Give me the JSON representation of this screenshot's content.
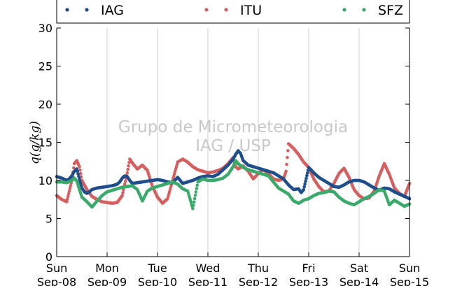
{
  "chart_data": {
    "type": "scatter",
    "title": "",
    "xlabel": "",
    "ylabel": "q(g/kg)",
    "ylim": [
      0,
      30
    ],
    "yticks": [
      0,
      5,
      10,
      15,
      20,
      25,
      30
    ],
    "xlim": [
      0,
      7
    ],
    "xticks": [
      {
        "x": 0,
        "day": "Sun",
        "date": "Sep-08"
      },
      {
        "x": 1,
        "day": "Mon",
        "date": "Sep-09"
      },
      {
        "x": 2,
        "day": "Tue",
        "date": "Sep-10"
      },
      {
        "x": 3,
        "day": "Wed",
        "date": "Sep-11"
      },
      {
        "x": 4,
        "day": "Thu",
        "date": "Sep-12"
      },
      {
        "x": 5,
        "day": "Fri",
        "date": "Sep-13"
      },
      {
        "x": 6,
        "day": "Sat",
        "date": "Sep-14"
      },
      {
        "x": 7,
        "day": "Sun",
        "date": "Sep-15"
      }
    ],
    "grid": "vertical",
    "legend_position": "top",
    "watermark": [
      "Grupo de Micrometeorologia",
      "IAG / USP"
    ],
    "series": [
      {
        "name": "IAG",
        "color": "#1f4e8c",
        "x": [
          0.0,
          0.1,
          0.2,
          0.25,
          0.3,
          0.35,
          0.4,
          0.45,
          0.5,
          0.55,
          0.6,
          0.65,
          0.7,
          0.8,
          0.9,
          1.0,
          1.1,
          1.2,
          1.25,
          1.3,
          1.35,
          1.4,
          1.45,
          1.5,
          1.6,
          1.7,
          1.8,
          1.9,
          2.0,
          2.1,
          2.2,
          2.3,
          2.4,
          2.5,
          2.6,
          2.7,
          2.8,
          2.9,
          3.0,
          3.1,
          3.2,
          3.3,
          3.4,
          3.5,
          3.55,
          3.6,
          3.65,
          3.7,
          3.8,
          3.9,
          4.0,
          4.1,
          4.2,
          4.3,
          4.4,
          4.5,
          4.6,
          4.7,
          4.8,
          4.85,
          4.9,
          5.0,
          5.1,
          5.2,
          5.3,
          5.4,
          5.5,
          5.6,
          5.7,
          5.8,
          5.9,
          6.0,
          6.1,
          6.2,
          6.3,
          6.4,
          6.5,
          6.6,
          6.7,
          6.8,
          6.9,
          7.0
        ],
        "y": [
          10.5,
          10.3,
          10.0,
          10.2,
          10.6,
          11.2,
          11.5,
          10.2,
          9.0,
          8.5,
          8.3,
          8.5,
          8.8,
          9.0,
          9.1,
          9.2,
          9.3,
          9.5,
          9.8,
          10.3,
          10.6,
          10.5,
          10.0,
          9.6,
          9.7,
          9.8,
          9.9,
          10.0,
          10.1,
          10.0,
          9.8,
          9.7,
          10.4,
          9.6,
          9.8,
          10.0,
          10.3,
          10.5,
          10.6,
          10.5,
          10.8,
          11.4,
          12.0,
          12.8,
          13.4,
          13.9,
          13.5,
          12.6,
          12.0,
          11.8,
          11.6,
          11.4,
          11.2,
          11.0,
          10.6,
          10.2,
          9.4,
          8.8,
          8.9,
          8.4,
          8.8,
          11.7,
          11.0,
          10.4,
          10.0,
          9.6,
          9.2,
          9.1,
          9.4,
          9.8,
          10.0,
          10.0,
          9.8,
          9.4,
          9.0,
          8.7,
          9.0,
          8.9,
          8.5,
          8.2,
          7.9,
          7.6
        ]
      },
      {
        "name": "ITU",
        "color": "#d45f5f",
        "x": [
          0.0,
          0.1,
          0.2,
          0.3,
          0.35,
          0.4,
          0.45,
          0.5,
          0.6,
          0.7,
          0.8,
          0.9,
          1.0,
          1.1,
          1.2,
          1.3,
          1.35,
          1.4,
          1.45,
          1.5,
          1.55,
          1.6,
          1.7,
          1.8,
          1.9,
          2.0,
          2.1,
          2.2,
          2.3,
          2.4,
          2.5,
          2.6,
          2.7,
          2.8,
          2.9,
          3.0,
          3.1,
          3.2,
          3.3,
          3.4,
          3.5,
          3.55,
          3.6,
          3.7,
          3.8,
          3.9,
          4.0,
          4.1,
          4.2,
          4.3,
          4.4,
          4.5,
          4.55,
          4.6,
          4.7,
          4.8,
          4.9,
          5.0,
          5.1,
          5.2,
          5.3,
          5.4,
          5.5,
          5.6,
          5.7,
          5.8,
          5.9,
          6.0,
          6.1,
          6.2,
          6.3,
          6.4,
          6.5,
          6.6,
          6.7,
          6.8,
          6.9,
          7.0
        ],
        "y": [
          8.0,
          7.5,
          7.2,
          10.0,
          12.2,
          12.6,
          11.8,
          10.0,
          8.8,
          7.9,
          7.5,
          7.2,
          7.1,
          7.0,
          7.1,
          8.0,
          9.5,
          11.0,
          12.8,
          12.3,
          11.9,
          11.5,
          12.0,
          11.3,
          9.2,
          7.8,
          7.0,
          7.6,
          10.0,
          12.4,
          12.8,
          12.4,
          11.8,
          11.4,
          11.2,
          11.0,
          11.1,
          11.3,
          11.6,
          12.2,
          13.0,
          11.8,
          11.5,
          11.9,
          11.2,
          10.2,
          10.9,
          11.4,
          10.9,
          10.2,
          10.0,
          10.2,
          11.2,
          14.8,
          14.2,
          13.4,
          12.4,
          11.7,
          10.2,
          9.2,
          8.5,
          8.6,
          9.6,
          10.9,
          11.6,
          10.4,
          8.8,
          8.0,
          7.6,
          7.7,
          8.6,
          10.6,
          12.2,
          10.8,
          9.0,
          8.3,
          7.9,
          9.6
        ]
      },
      {
        "name": "SFZ",
        "color": "#3aaa6b",
        "x": [
          0.0,
          0.1,
          0.2,
          0.3,
          0.35,
          0.4,
          0.45,
          0.5,
          0.55,
          0.6,
          0.7,
          0.8,
          0.9,
          1.0,
          1.1,
          1.2,
          1.3,
          1.4,
          1.5,
          1.6,
          1.7,
          1.8,
          1.9,
          2.0,
          2.1,
          2.2,
          2.3,
          2.4,
          2.5,
          2.6,
          2.7,
          2.8,
          2.9,
          3.0,
          3.1,
          3.2,
          3.3,
          3.4,
          3.5,
          3.55,
          3.6,
          3.7,
          3.8,
          3.9,
          4.0,
          4.1,
          4.2,
          4.3,
          4.4,
          4.5,
          4.6,
          4.7,
          4.8,
          4.9,
          5.0,
          5.1,
          5.2,
          5.3,
          5.4,
          5.5,
          5.6,
          5.7,
          5.8,
          5.9,
          6.0,
          6.1,
          6.2,
          6.3,
          6.4,
          6.5,
          6.6,
          6.7,
          6.8,
          6.9,
          7.0
        ],
        "y": [
          9.8,
          9.8,
          9.7,
          10.0,
          10.3,
          9.9,
          8.8,
          7.8,
          7.5,
          7.2,
          6.5,
          7.3,
          8.0,
          8.5,
          8.7,
          8.9,
          9.1,
          9.2,
          9.3,
          8.8,
          7.3,
          8.6,
          9.0,
          9.2,
          9.4,
          9.6,
          9.8,
          9.5,
          8.9,
          8.6,
          6.3,
          9.8,
          10.2,
          10.0,
          10.0,
          10.1,
          10.3,
          10.8,
          11.8,
          12.6,
          12.2,
          11.7,
          11.4,
          11.2,
          11.0,
          10.8,
          10.6,
          9.8,
          9.0,
          8.6,
          8.2,
          7.3,
          7.0,
          7.4,
          7.6,
          8.0,
          8.3,
          8.4,
          8.6,
          8.5,
          7.8,
          7.3,
          7.0,
          6.8,
          7.2,
          7.6,
          7.9,
          8.3,
          8.8,
          8.6,
          6.8,
          7.4,
          7.0,
          6.6,
          6.9
        ]
      }
    ]
  }
}
